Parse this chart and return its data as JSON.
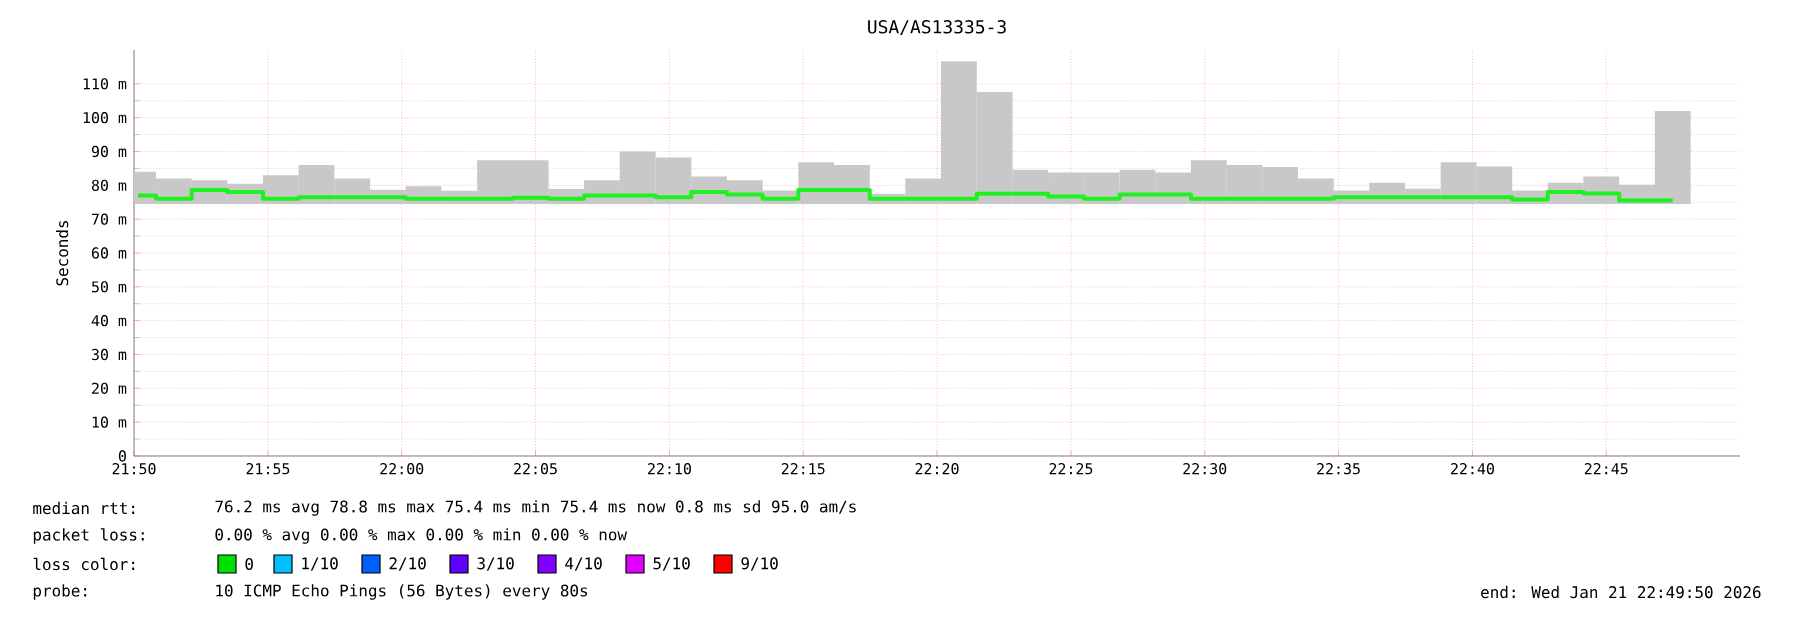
{
  "chart_data": {
    "type": "bar",
    "title": "USA/AS13335-3",
    "ylabel": "Seconds",
    "x": [
      21.8358,
      21.8581,
      21.8803,
      21.9025,
      21.9247,
      21.9469,
      21.9692,
      21.9914,
      22.0136,
      22.0358,
      22.0581,
      22.0803,
      22.1025,
      22.1247,
      22.1469,
      22.1692,
      22.1914,
      22.2136,
      22.2358,
      22.2581,
      22.2803,
      22.3025,
      22.3247,
      22.3469,
      22.3692,
      22.3914,
      22.4136,
      22.4358,
      22.4581,
      22.4803,
      22.5025,
      22.5247,
      22.5469,
      22.5692,
      22.5914,
      22.6136,
      22.6358,
      22.6581,
      22.6803,
      22.7025,
      22.7247,
      22.7469,
      22.7692,
      22.7914
    ],
    "series": [
      {
        "color": "#c8c8c8",
        "base": [
          74.5,
          74.5,
          74.5,
          74.5,
          74.5,
          74.5,
          74.5,
          74.5,
          74.5,
          74.5,
          74.5,
          74.5,
          74.5,
          74.5,
          74.5,
          74.5,
          74.5,
          74.5,
          74.5,
          74.5,
          74.5,
          74.5,
          74.5,
          74.5,
          74.5,
          74.5,
          74.5,
          74.5,
          74.5,
          74.5,
          74.5,
          74.5,
          74.5,
          74.5,
          74.5,
          74.5,
          74.5,
          74.5,
          74.5,
          74.5,
          74.5,
          74.5,
          74.5,
          74.5
        ],
        "values": [
          9.5,
          7.5,
          7,
          6,
          8.5,
          11.5,
          7.5,
          4.2,
          5.2,
          3.9,
          12.9,
          12.9,
          4.4,
          7,
          15.5,
          13.7,
          8.1,
          7,
          4,
          12.3,
          11.5,
          3,
          7.5,
          42.2,
          33.1,
          10.1,
          9.3,
          9.3,
          10.1,
          9.3,
          12.9,
          11.5,
          10.9,
          7.5,
          4,
          6.3,
          4.5,
          12.3,
          11.1,
          4,
          6.3,
          8.1,
          5.7,
          27.5
        ]
      },
      {
        "type": "step",
        "color": "#20f020",
        "values": [
          77,
          76,
          78.6,
          78,
          76,
          76.5,
          76.5,
          76.5,
          76,
          76,
          76,
          76.3,
          76,
          77,
          77,
          76.5,
          78,
          77.3,
          76,
          78.6,
          78.6,
          76,
          76,
          76,
          77.5,
          77.5,
          76.7,
          76,
          77.3,
          77.3,
          76,
          76,
          76,
          76,
          76.5,
          76.5,
          76.5,
          76.5,
          76.5,
          75.8,
          78,
          77.6,
          75.5,
          75.5
        ]
      }
    ],
    "xlim": [
      21.8333,
      22.8333
    ],
    "xticks": [
      {
        "value": 21.8333,
        "label": "21:50"
      },
      {
        "value": 21.9167,
        "label": "21:55"
      },
      {
        "value": 22,
        "label": "22:00"
      },
      {
        "value": 22.0833,
        "label": "22:05"
      },
      {
        "value": 22.1667,
        "label": "22:10"
      },
      {
        "value": 22.25,
        "label": "22:15"
      },
      {
        "value": 22.3333,
        "label": "22:20"
      },
      {
        "value": 22.4167,
        "label": "22:25"
      },
      {
        "value": 22.5,
        "label": "22:30"
      },
      {
        "value": 22.5833,
        "label": "22:35"
      },
      {
        "value": 22.6667,
        "label": "22:40"
      },
      {
        "value": 22.75,
        "label": "22:45"
      }
    ],
    "ylim": [
      0,
      120
    ],
    "yticks": [
      0,
      {
        "value": 10,
        "label": "10 m"
      },
      {
        "value": 20,
        "label": "20 m"
      },
      {
        "value": 30,
        "label": "30 m"
      },
      {
        "value": 40,
        "label": "40 m"
      },
      {
        "value": 50,
        "label": "50 m"
      },
      {
        "value": 60,
        "label": "60 m"
      },
      {
        "value": 70,
        "label": "70 m"
      },
      {
        "value": 80,
        "label": "80 m"
      },
      {
        "value": 90,
        "label": "90 m"
      },
      {
        "value": 100,
        "label": "100 m"
      },
      {
        "value": 110,
        "label": "110 m"
      }
    ],
    "grid": true,
    "annotations": [
      "median rtt:",
      "76.2 ms avg  78.8 ms max  75.4 ms min  75.4 ms now  0.8 ms sd  95.0   am/s",
      "packet loss:",
      "0.00 % avg  0.00 % max  0.00 % min  0.00 % now",
      "loss color:",
      "0",
      "1/10",
      "2/10",
      "3/10",
      "4/10",
      "5/10",
      "9/10",
      "probe:",
      "10 ICMP Echo Pings (56 Bytes) every 80s",
      "end: Wed Jan 21 22:49:50 2026"
    ]
  }
}
